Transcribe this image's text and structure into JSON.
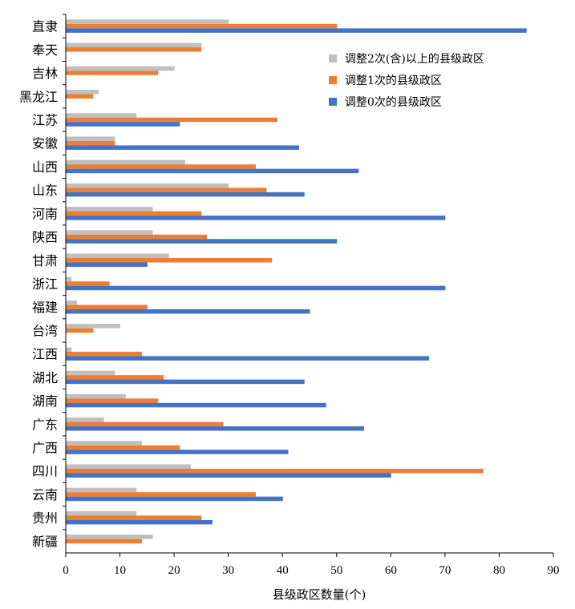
{
  "chart_data": {
    "type": "bar",
    "orientation": "horizontal",
    "categories": [
      "直隶",
      "奉天",
      "吉林",
      "黑龙江",
      "江苏",
      "安徽",
      "山西",
      "山东",
      "河南",
      "陕西",
      "甘肃",
      "浙江",
      "福建",
      "台湾",
      "江西",
      "湖北",
      "湖南",
      "广东",
      "广西",
      "四川",
      "云南",
      "贵州",
      "新疆"
    ],
    "series": [
      {
        "name": "调整2次(含)以上的县级政区",
        "color": "#bfbfbf",
        "values": [
          30,
          25,
          20,
          6,
          13,
          9,
          22,
          30,
          16,
          16,
          19,
          1,
          2,
          10,
          1,
          9,
          11,
          7,
          14,
          23,
          13,
          13,
          16
        ]
      },
      {
        "name": "调整1次的县级政区",
        "color": "#ed7d31",
        "values": [
          50,
          25,
          17,
          5,
          39,
          9,
          35,
          37,
          25,
          26,
          38,
          8,
          15,
          5,
          14,
          18,
          17,
          29,
          21,
          77,
          35,
          25,
          14
        ]
      },
      {
        "name": "调整0次的县级政区",
        "color": "#4472c4",
        "values": [
          85,
          0,
          0,
          0,
          21,
          43,
          54,
          44,
          70,
          50,
          15,
          70,
          45,
          0,
          67,
          44,
          48,
          55,
          41,
          60,
          40,
          27,
          0
        ]
      }
    ],
    "xlabel": "县级政区数量(个)",
    "xlim": [
      0,
      90
    ],
    "xticks": [
      "0",
      "10",
      "20",
      "30",
      "40",
      "50",
      "60",
      "70",
      "80",
      "90"
    ],
    "legend_position": "upper-right",
    "grid": false
  }
}
